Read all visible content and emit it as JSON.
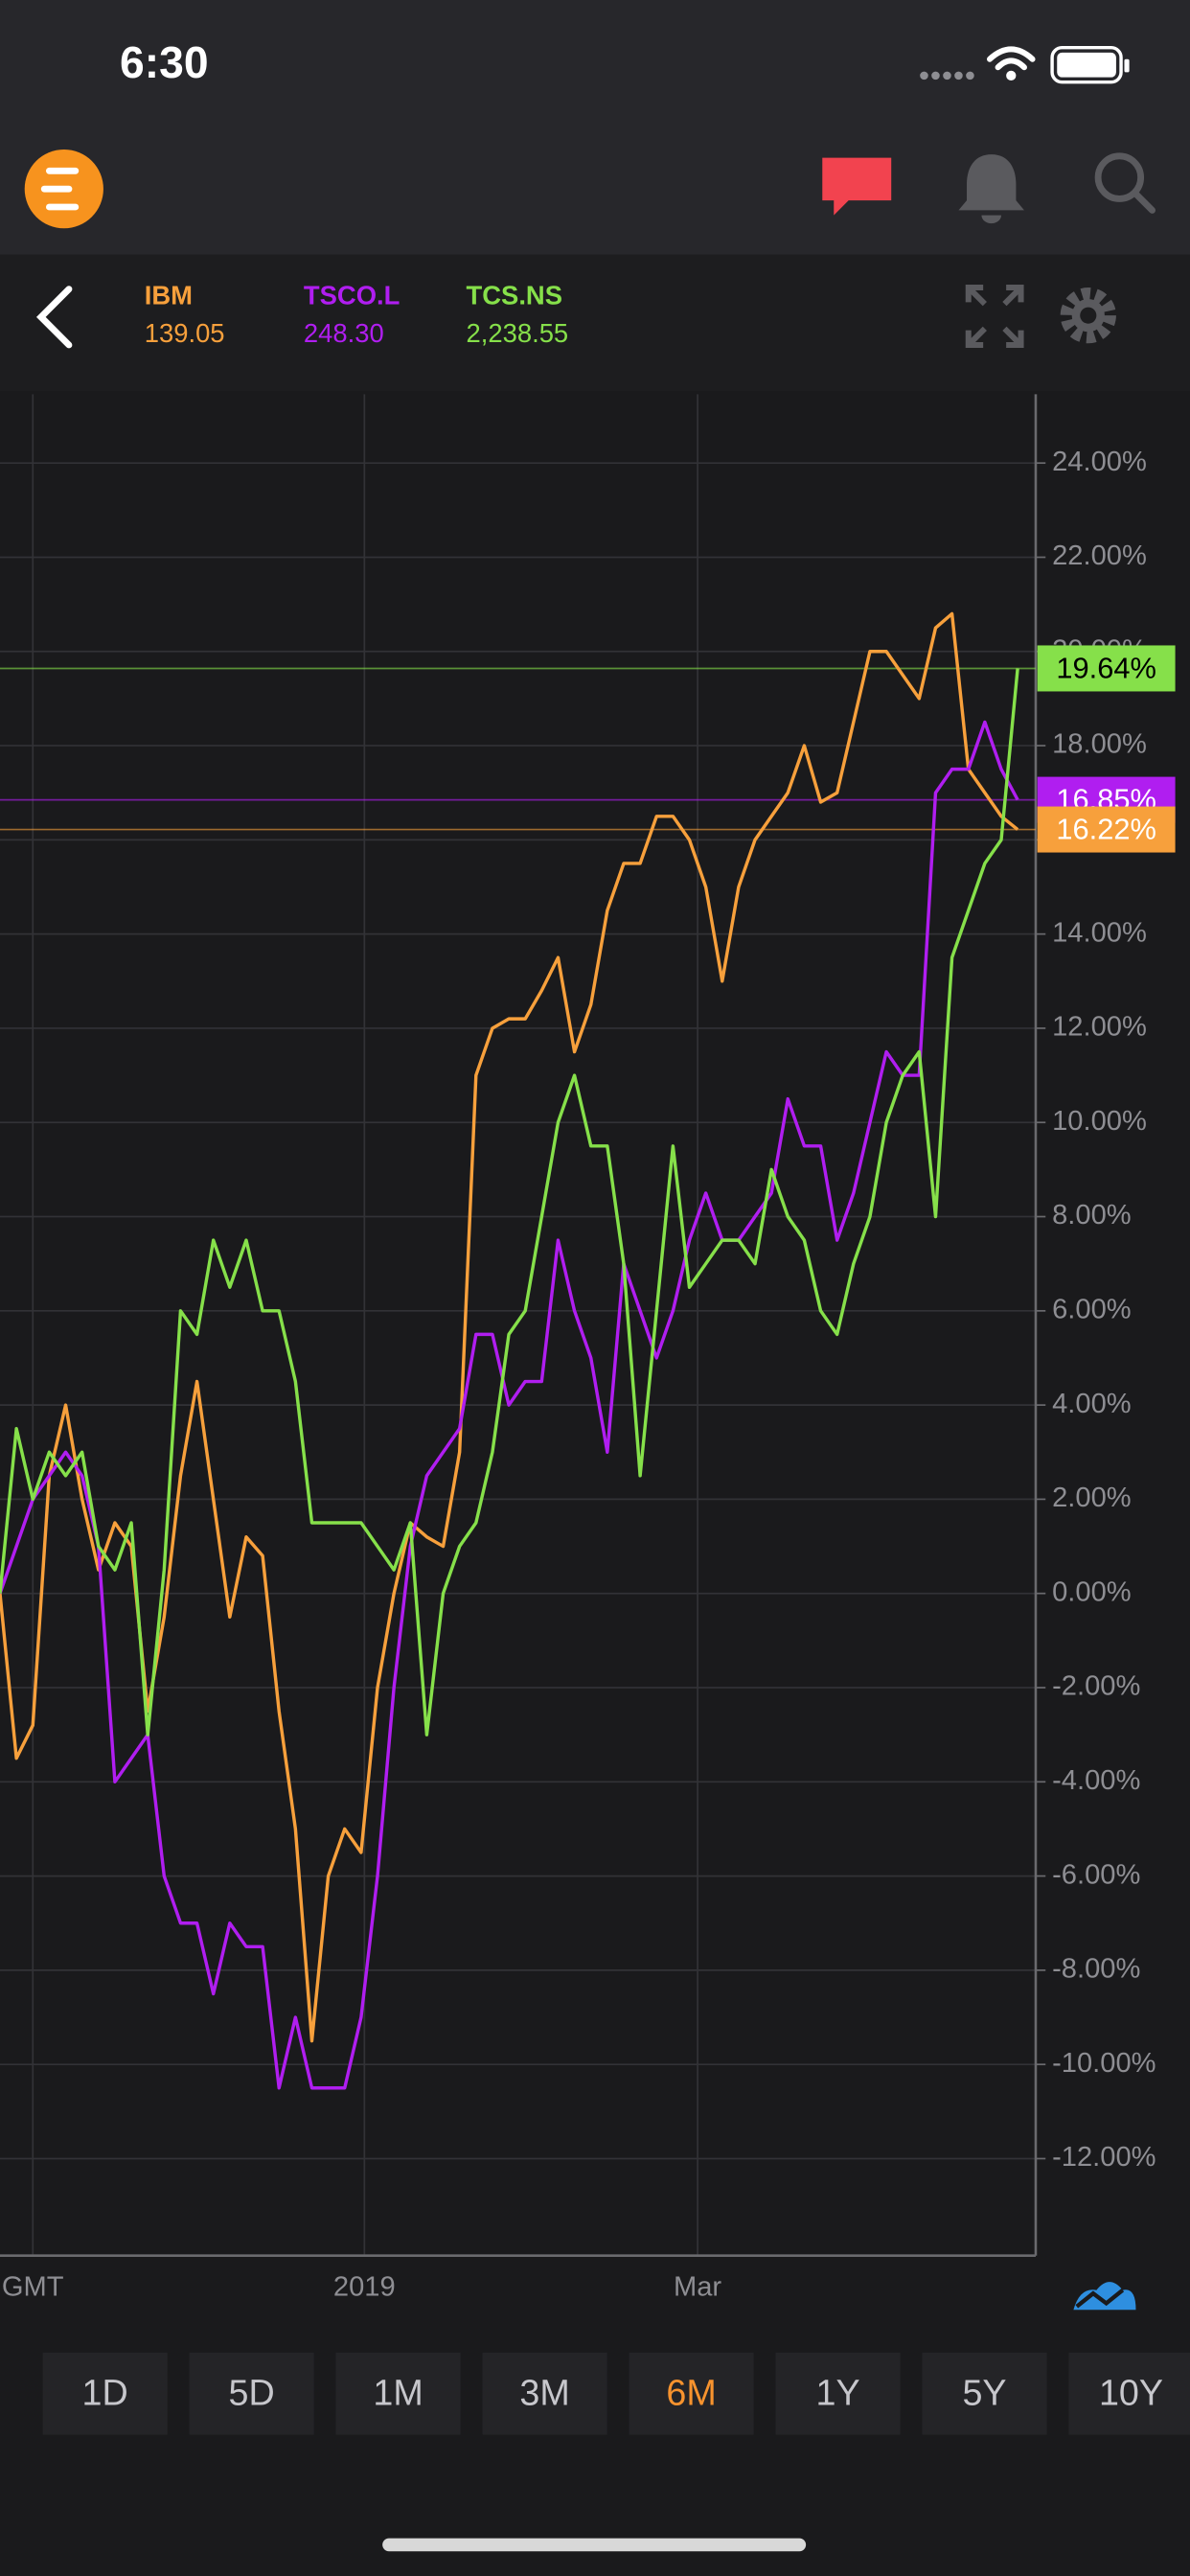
{
  "status_bar": {
    "time": "6:30"
  },
  "quotes": [
    {
      "price": "139.05"
    },
    {
      "price": "248.30"
    },
    {
      "price": "2,238.55"
    }
  ],
  "ranges": {
    "options": [
      "1D",
      "5D",
      "1M",
      "3M",
      "6M",
      "1Y",
      "5Y",
      "10Y"
    ],
    "selected_index": 4,
    "active_color": "#f7932e"
  },
  "chart_data": {
    "type": "line",
    "x": [
      0,
      2,
      4,
      6,
      8,
      10,
      12,
      14,
      16,
      18,
      20,
      22,
      24,
      26,
      28,
      30,
      32,
      34,
      36,
      38,
      40,
      42,
      44,
      46,
      48,
      50,
      52,
      54,
      56,
      58,
      60,
      62,
      64,
      66,
      68,
      70,
      72,
      74,
      76,
      78,
      80,
      82,
      84,
      86,
      88,
      90,
      92,
      94,
      96,
      98,
      100,
      102,
      104,
      106,
      108,
      110,
      112,
      114,
      116,
      118,
      120,
      122,
      124
    ],
    "series": [
      {
        "name": "IBM",
        "color": "#f7a03c",
        "values": [
          0,
          -3.5,
          -2.8,
          2.5,
          4,
          2,
          0.5,
          1.5,
          1,
          -2.5,
          -0.5,
          2.5,
          4.5,
          2,
          -0.5,
          1.2,
          0.8,
          -2.5,
          -5,
          -9.5,
          -6,
          -5,
          -5.5,
          -2,
          0,
          1.5,
          1.2,
          1,
          3,
          11,
          12,
          12.2,
          12.2,
          12.8,
          13.5,
          11.5,
          12.5,
          14.5,
          15.5,
          15.5,
          16.5,
          16.5,
          16,
          15,
          13,
          15,
          16,
          16.5,
          17,
          18,
          16.8,
          17,
          18.5,
          20,
          20,
          19.5,
          19,
          20.5,
          20.8,
          17.5,
          17,
          16.5,
          16.22
        ]
      },
      {
        "name": "TSCO.L",
        "color": "#b01ef0",
        "values": [
          0,
          1,
          2,
          2.5,
          3,
          2.5,
          1,
          -4,
          -3.5,
          -3,
          -6,
          -7,
          -7,
          -8.5,
          -7,
          -7.5,
          -7.5,
          -10.5,
          -9,
          -10.5,
          -10.5,
          -10.5,
          -9,
          -6,
          -2,
          1,
          2.5,
          3,
          3.5,
          5.5,
          5.5,
          4,
          4.5,
          4.5,
          7.5,
          6,
          5,
          3,
          7,
          6,
          5,
          6,
          7.5,
          8.5,
          7.5,
          7.5,
          8,
          8.5,
          10.5,
          9.5,
          9.5,
          7.5,
          8.5,
          10,
          11.5,
          11,
          11,
          17,
          17.5,
          17.5,
          18.5,
          17.5,
          16.85
        ]
      },
      {
        "name": "TCS.NS",
        "color": "#86e04a",
        "values": [
          0,
          3.5,
          2,
          3,
          2.5,
          3,
          1,
          0.5,
          1.5,
          -3,
          0.5,
          6,
          5.5,
          7.5,
          6.5,
          7.5,
          6,
          6,
          4.5,
          1.5,
          1.5,
          1.5,
          1.5,
          1,
          0.5,
          1.5,
          -3,
          0,
          1,
          1.5,
          3,
          5.5,
          6,
          8,
          10,
          11,
          9.5,
          9.5,
          7,
          2.5,
          6,
          9.5,
          6.5,
          7,
          7.5,
          7.5,
          7,
          9,
          8,
          7.5,
          6,
          5.5,
          7,
          8,
          10,
          11,
          11.5,
          8,
          13.5,
          14.5,
          15.5,
          16,
          19.64
        ]
      }
    ],
    "annotations": [
      {
        "value": 19.64,
        "label": "19.64%",
        "color": "#86e04a",
        "text_color": "#000000"
      },
      {
        "value": 16.85,
        "label": "16.85%",
        "color": "#b01ef0",
        "text_color": "#ffffff"
      },
      {
        "value": 16.22,
        "label": "16.22%",
        "color": "#f7a03c",
        "text_color": "#ffffff"
      }
    ],
    "xlim": [
      0,
      126.2
    ],
    "xticks": [
      {
        "value": 4,
        "label": "GMT"
      },
      {
        "value": 44.4,
        "label": "2019"
      },
      {
        "value": 85,
        "label": "Mar"
      }
    ],
    "ylim": [
      -14.06,
      25.46
    ],
    "yticks": [
      {
        "value": -12,
        "label": "-12.00%"
      },
      {
        "value": -10,
        "label": "-10.00%"
      },
      {
        "value": -8,
        "label": "-8.00%"
      },
      {
        "value": -6,
        "label": "-6.00%"
      },
      {
        "value": -4,
        "label": "-4.00%"
      },
      {
        "value": -2,
        "label": "-2.00%"
      },
      {
        "value": 0,
        "label": "0.00%"
      },
      {
        "value": 2,
        "label": "2.00%"
      },
      {
        "value": 4,
        "label": "4.00%"
      },
      {
        "value": 6,
        "label": "6.00%"
      },
      {
        "value": 8,
        "label": "8.00%"
      },
      {
        "value": 10,
        "label": "10.00%"
      },
      {
        "value": 12,
        "label": "12.00%"
      },
      {
        "value": 14,
        "label": "14.00%"
      },
      {
        "value": 16,
        "label": "16.00%"
      },
      {
        "value": 18,
        "label": "18.00%"
      },
      {
        "value": 20,
        "label": "20.00%"
      },
      {
        "value": 22,
        "label": "22.00%"
      },
      {
        "value": 24,
        "label": "24.00%"
      }
    ],
    "grid": true
  }
}
